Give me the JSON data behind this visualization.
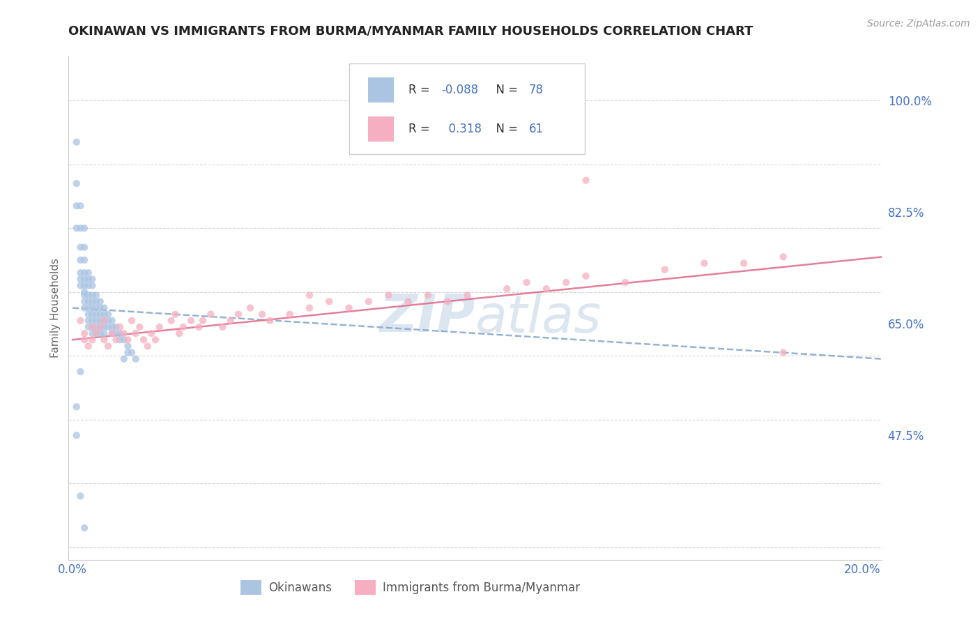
{
  "title": "OKINAWAN VS IMMIGRANTS FROM BURMA/MYANMAR FAMILY HOUSEHOLDS CORRELATION CHART",
  "source": "Source: ZipAtlas.com",
  "ylabel": "Family Households",
  "yticks": [
    0.475,
    0.65,
    0.825,
    1.0
  ],
  "ytick_labels": [
    "47.5%",
    "65.0%",
    "82.5%",
    "100.0%"
  ],
  "xlim": [
    -0.001,
    0.205
  ],
  "ylim": [
    0.28,
    1.07
  ],
  "color_blue": "#aac4e2",
  "color_pink": "#f5afc0",
  "color_blue_dark": "#4472c4",
  "color_pink_line": "#e07090",
  "color_blue_line": "#88aacc",
  "background_color": "#ffffff",
  "grid_color": "#cccccc",
  "watermark_color": "#dce6f0",
  "ok_x": [
    0.001,
    0.001,
    0.001,
    0.001,
    0.002,
    0.002,
    0.002,
    0.002,
    0.002,
    0.002,
    0.002,
    0.003,
    0.003,
    0.003,
    0.003,
    0.003,
    0.003,
    0.003,
    0.003,
    0.003,
    0.003,
    0.004,
    0.004,
    0.004,
    0.004,
    0.004,
    0.004,
    0.004,
    0.004,
    0.004,
    0.005,
    0.005,
    0.005,
    0.005,
    0.005,
    0.005,
    0.005,
    0.005,
    0.005,
    0.006,
    0.006,
    0.006,
    0.006,
    0.006,
    0.006,
    0.006,
    0.007,
    0.007,
    0.007,
    0.007,
    0.007,
    0.007,
    0.008,
    0.008,
    0.008,
    0.008,
    0.008,
    0.009,
    0.009,
    0.009,
    0.01,
    0.01,
    0.01,
    0.011,
    0.011,
    0.012,
    0.012,
    0.013,
    0.014,
    0.014,
    0.015,
    0.016,
    0.001,
    0.001,
    0.002,
    0.013,
    0.002,
    0.003
  ],
  "ok_y": [
    0.935,
    0.87,
    0.835,
    0.8,
    0.835,
    0.8,
    0.77,
    0.75,
    0.73,
    0.72,
    0.71,
    0.8,
    0.77,
    0.75,
    0.73,
    0.72,
    0.71,
    0.7,
    0.695,
    0.685,
    0.675,
    0.73,
    0.72,
    0.71,
    0.695,
    0.685,
    0.675,
    0.665,
    0.655,
    0.645,
    0.72,
    0.71,
    0.695,
    0.685,
    0.675,
    0.665,
    0.655,
    0.645,
    0.635,
    0.695,
    0.685,
    0.675,
    0.665,
    0.655,
    0.645,
    0.635,
    0.685,
    0.675,
    0.665,
    0.655,
    0.645,
    0.635,
    0.675,
    0.665,
    0.655,
    0.645,
    0.635,
    0.665,
    0.655,
    0.645,
    0.655,
    0.645,
    0.635,
    0.645,
    0.635,
    0.635,
    0.625,
    0.625,
    0.615,
    0.605,
    0.605,
    0.595,
    0.52,
    0.475,
    0.575,
    0.595,
    0.38,
    0.33
  ],
  "bur_x": [
    0.002,
    0.003,
    0.003,
    0.004,
    0.005,
    0.005,
    0.006,
    0.007,
    0.008,
    0.008,
    0.009,
    0.01,
    0.011,
    0.012,
    0.013,
    0.014,
    0.015,
    0.016,
    0.017,
    0.018,
    0.019,
    0.02,
    0.021,
    0.022,
    0.025,
    0.026,
    0.027,
    0.028,
    0.03,
    0.032,
    0.033,
    0.035,
    0.038,
    0.04,
    0.042,
    0.045,
    0.048,
    0.05,
    0.055,
    0.06,
    0.065,
    0.07,
    0.075,
    0.08,
    0.085,
    0.09,
    0.095,
    0.1,
    0.11,
    0.115,
    0.12,
    0.125,
    0.13,
    0.14,
    0.15,
    0.16,
    0.17,
    0.18,
    0.06,
    0.13,
    0.18
  ],
  "bur_y": [
    0.655,
    0.635,
    0.625,
    0.615,
    0.645,
    0.625,
    0.635,
    0.645,
    0.655,
    0.625,
    0.615,
    0.635,
    0.625,
    0.645,
    0.635,
    0.625,
    0.655,
    0.635,
    0.645,
    0.625,
    0.615,
    0.635,
    0.625,
    0.645,
    0.655,
    0.665,
    0.635,
    0.645,
    0.655,
    0.645,
    0.655,
    0.665,
    0.645,
    0.655,
    0.665,
    0.675,
    0.665,
    0.655,
    0.665,
    0.675,
    0.685,
    0.675,
    0.685,
    0.695,
    0.685,
    0.695,
    0.685,
    0.695,
    0.705,
    0.715,
    0.705,
    0.715,
    0.725,
    0.715,
    0.735,
    0.745,
    0.745,
    0.755,
    0.695,
    0.875,
    0.605
  ],
  "ok_trend_x0": 0.0,
  "ok_trend_x1": 0.205,
  "ok_trend_y0": 0.675,
  "ok_trend_y1": 0.595,
  "bur_trend_x0": 0.0,
  "bur_trend_x1": 0.205,
  "bur_trend_y0": 0.625,
  "bur_trend_y1": 0.755
}
